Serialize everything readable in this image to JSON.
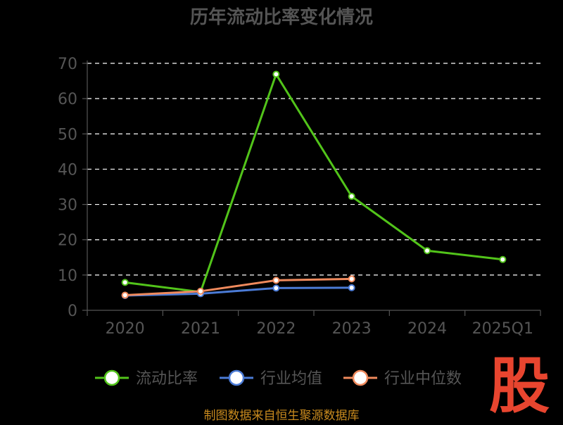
{
  "chart_data": {
    "type": "line",
    "title": "历年流动比率变化情况",
    "categories": [
      "2020",
      "2021",
      "2022",
      "2023",
      "2024",
      "2025Q1"
    ],
    "y_ticks": [
      "0",
      "10",
      "20",
      "30",
      "40",
      "50",
      "60",
      "70"
    ],
    "ylim": [
      0,
      70
    ],
    "grid": true,
    "legend_position": "bottom",
    "series": [
      {
        "name": "流动比率",
        "color": "#52c41a",
        "values": [
          7.9,
          5.2,
          66.9,
          32.3,
          16.9,
          14.4
        ]
      },
      {
        "name": "行业均值",
        "color": "#4b7bd6",
        "values": [
          4.2,
          4.7,
          6.3,
          6.4,
          null,
          null
        ]
      },
      {
        "name": "行业中位数",
        "color": "#f08a5d",
        "values": [
          4.3,
          5.4,
          8.5,
          8.9,
          null,
          null
        ]
      }
    ]
  },
  "source_text": "制图数据来自恒生聚源数据库",
  "logo_text": "股",
  "colors": {
    "background": "#000000",
    "title": "#555555",
    "axis_text": "#555555",
    "grid": "#ffffff",
    "source": "#c88a1e",
    "logo": "#e8452f"
  }
}
